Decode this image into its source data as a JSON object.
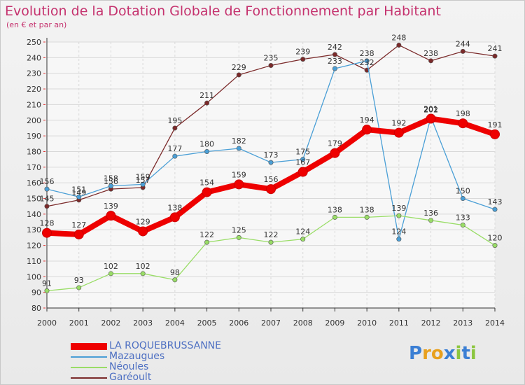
{
  "title": "Evolution de la Dotation Globale de Fonctionnement par Habitant",
  "subtitle": "(en € et par an)",
  "chart_data": {
    "type": "line",
    "title": "Evolution de la Dotation Globale de Fonctionnement par Habitant",
    "subtitle": "(en € et par an)",
    "xlabel": "",
    "ylabel": "",
    "x": [
      "2000",
      "2001",
      "2002",
      "2003",
      "2004",
      "2005",
      "2006",
      "2007",
      "2008",
      "2009",
      "2010",
      "2011",
      "2012",
      "2013",
      "2014"
    ],
    "ylim": [
      80,
      250
    ],
    "ytick_step": 10,
    "grid": true,
    "series": [
      {
        "name": "Garéoult",
        "color": "#7b2a2a",
        "values": [
          145,
          149,
          156,
          157,
          195,
          211,
          229,
          235,
          239,
          242,
          232,
          248,
          238,
          244,
          241
        ]
      },
      {
        "name": "Mazaugues",
        "color": "#4a9fd6",
        "values": [
          156,
          151,
          158,
          159,
          177,
          180,
          182,
          173,
          175,
          233,
          238,
          124,
          202,
          150,
          143
        ]
      },
      {
        "name": "Néoules",
        "color": "#99dd66",
        "values": [
          91,
          93,
          102,
          102,
          98,
          122,
          125,
          122,
          124,
          138,
          138,
          139,
          136,
          133,
          120
        ]
      },
      {
        "name": "LA ROQUEBRUSSANNE",
        "color": "#ee0000",
        "values": [
          128,
          127,
          139,
          129,
          138,
          154,
          159,
          156,
          167,
          179,
          194,
          192,
          201,
          198,
          191
        ]
      }
    ],
    "legend": [
      "LA ROQUEBRUSSANNE",
      "Mazaugues",
      "Néoules",
      "Garéoult"
    ],
    "legend_position": "bottom-left"
  },
  "legend_labels": {
    "roq": "LA ROQUEBRUSSANNE",
    "maz": "Mazaugues",
    "neo": "Néoules",
    "gar": "Garéoult"
  },
  "logo": {
    "text": "Proxiti",
    "letters": [
      "P",
      "r",
      "o",
      "x",
      "i",
      "t",
      "i"
    ],
    "colors": [
      "#3b7fd4",
      "#e8a01e",
      "#e8a01e",
      "#3b7fd4",
      "#8cc63f",
      "#3b7fd4",
      "#8cc63f"
    ]
  }
}
